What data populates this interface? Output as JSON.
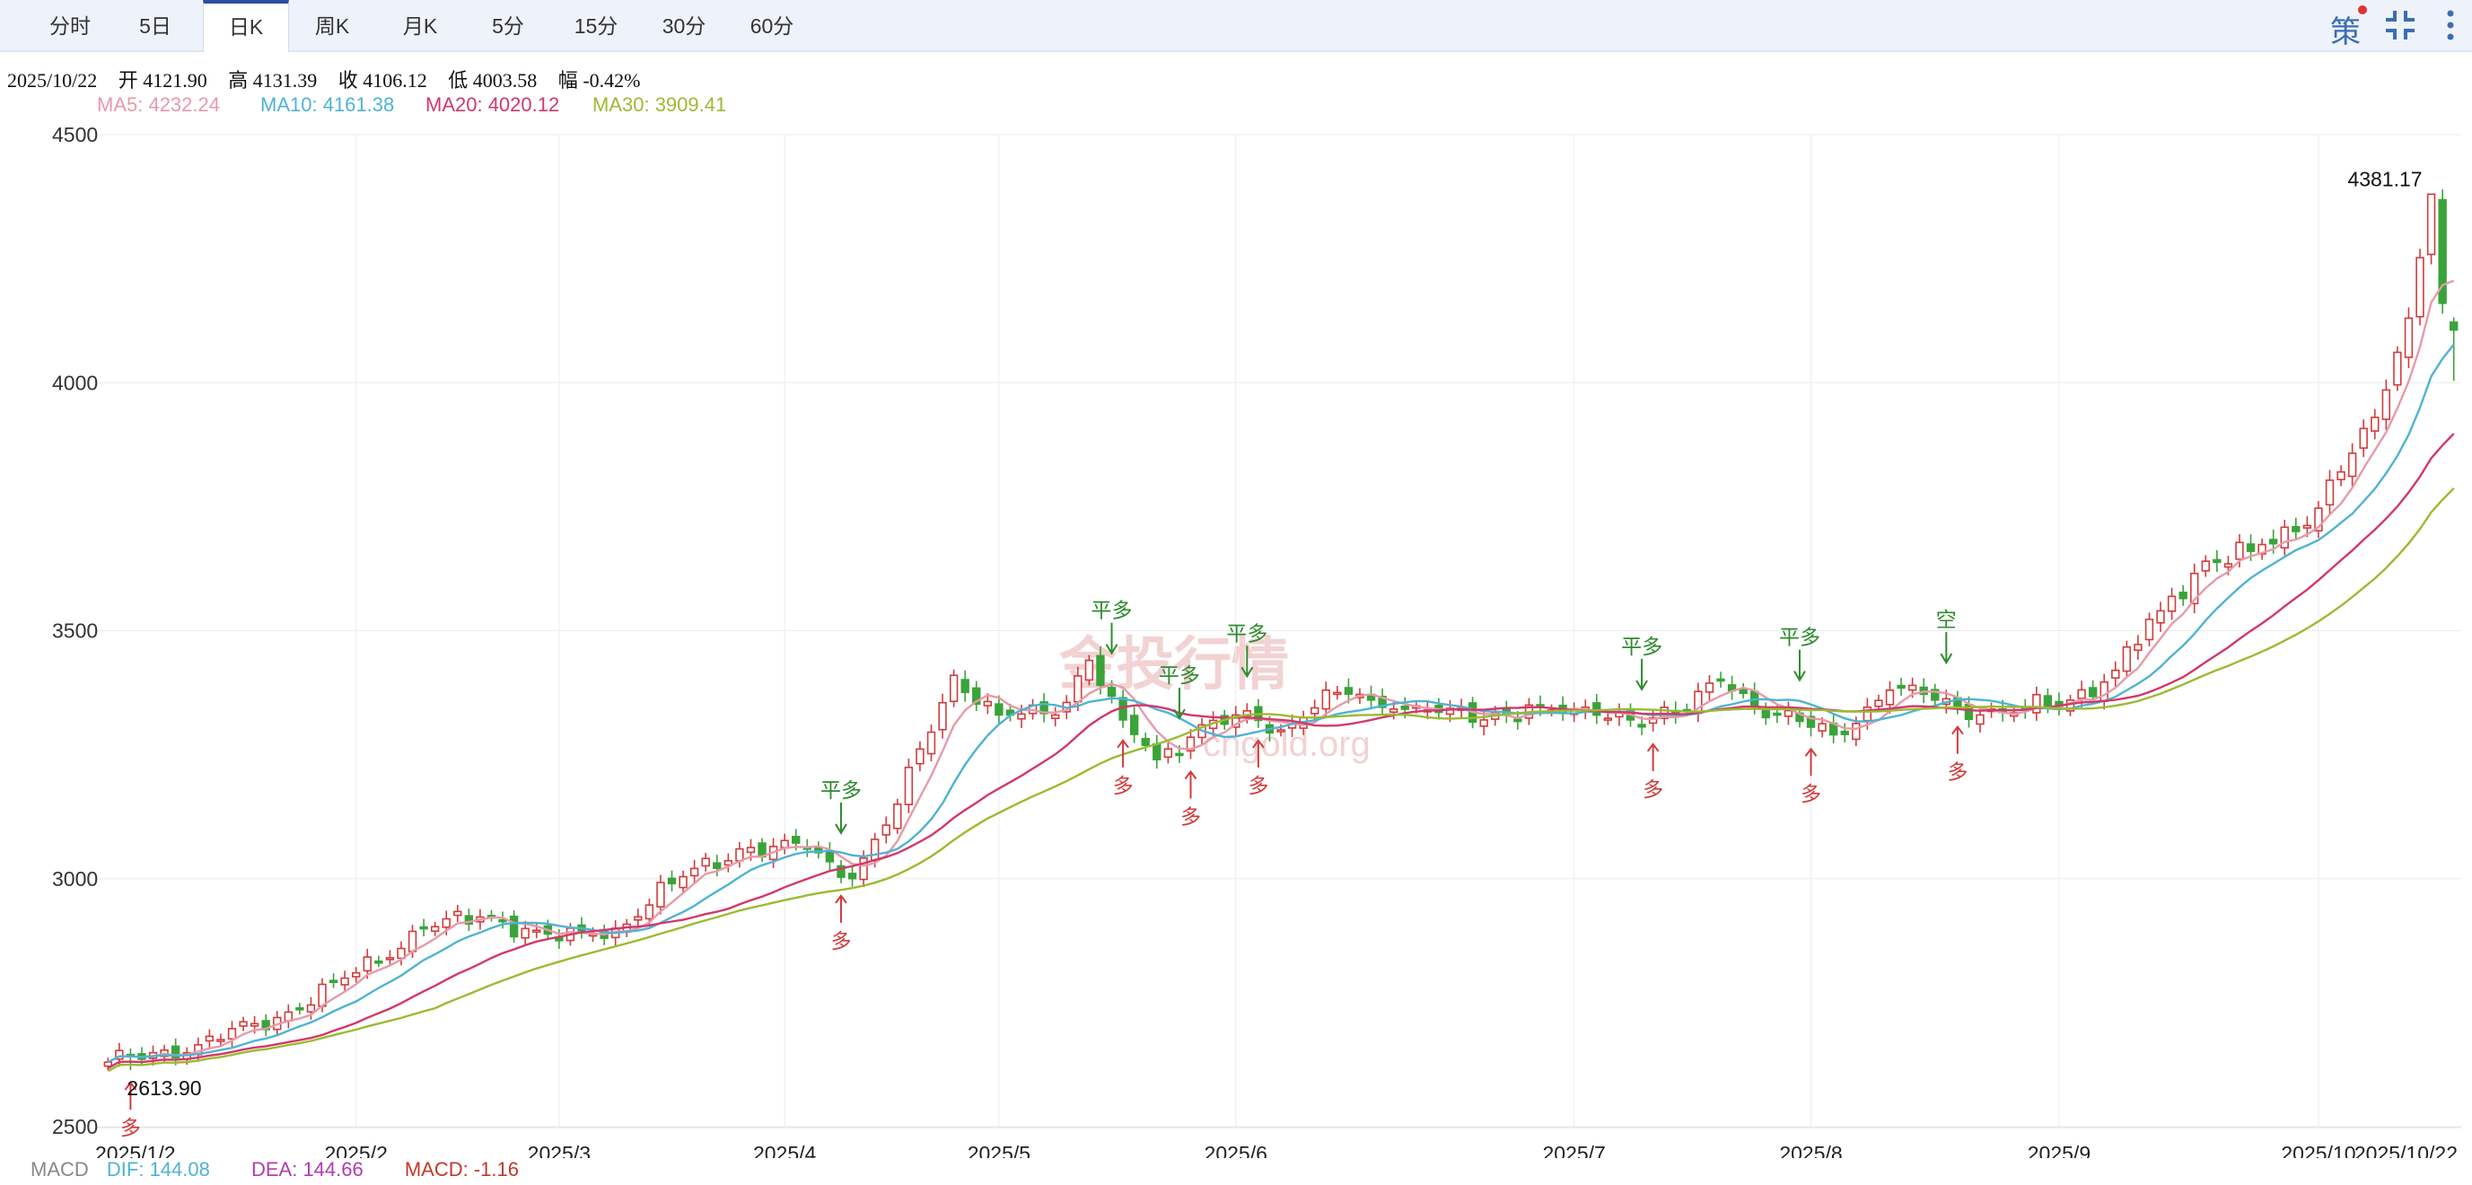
{
  "tabs": [
    "分时",
    "5日",
    "日K",
    "周K",
    "月K",
    "5分",
    "15分",
    "30分",
    "60分"
  ],
  "active_tab": "日K",
  "tools": {
    "strategy": "策",
    "fullscreen_icon": "fullscreen-icon",
    "more_icon": "more-vertical-icon"
  },
  "info": {
    "date": "2025/10/22",
    "open_label": "开",
    "open": "4121.90",
    "high_label": "高",
    "high": "4131.39",
    "close_label": "收",
    "close": "4106.12",
    "low_label": "低",
    "low": "4003.58",
    "amp_label": "幅",
    "amp": "-0.42%"
  },
  "ma": {
    "ma5": "MA5: 4232.24",
    "ma10": "MA10: 4161.38",
    "ma20": "MA20: 4020.12",
    "ma30": "MA30: 3909.41"
  },
  "macd": {
    "label": "MACD",
    "dif": "DIF: 144.08",
    "dea": "DEA: 144.66",
    "macd": "MACD: -1.16"
  },
  "watermark": {
    "cn": "金投行情",
    "en": "cngold.org"
  },
  "colors": {
    "up": "#d23b3b",
    "down": "#3aa33a",
    "ma5": "#e79aa8",
    "ma10": "#4fb3d3",
    "ma20": "#d2386a",
    "ma30": "#9abb32",
    "tab_accent": "#2c4fa3"
  },
  "chart_data": {
    "type": "candlestick",
    "y_ticks": [
      "4500",
      "4000",
      "3500",
      "3000",
      "2500"
    ],
    "ylim": [
      2500,
      4500
    ],
    "x_ticks": [
      "2025/1/2",
      "2025/2",
      "2025/3",
      "2025/4",
      "2025/5",
      "2025/6",
      "2025/7",
      "2025/8",
      "2025/9",
      "2025/10",
      "2025/10/22"
    ],
    "x_tick_day_index": [
      0,
      22,
      40,
      60,
      79,
      100,
      130,
      151,
      173,
      196,
      207
    ],
    "close_anchors": [
      [
        0,
        2630
      ],
      [
        8,
        2665
      ],
      [
        15,
        2720
      ],
      [
        22,
        2810
      ],
      [
        28,
        2900
      ],
      [
        34,
        2925
      ],
      [
        40,
        2875
      ],
      [
        45,
        2900
      ],
      [
        50,
        2990
      ],
      [
        56,
        3060
      ],
      [
        62,
        3060
      ],
      [
        66,
        3000
      ],
      [
        70,
        3150
      ],
      [
        75,
        3410
      ],
      [
        79,
        3330
      ],
      [
        84,
        3330
      ],
      [
        87,
        3440
      ],
      [
        90,
        3320
      ],
      [
        93,
        3240
      ],
      [
        97,
        3310
      ],
      [
        100,
        3330
      ],
      [
        104,
        3300
      ],
      [
        108,
        3380
      ],
      [
        112,
        3360
      ],
      [
        117,
        3340
      ],
      [
        122,
        3320
      ],
      [
        126,
        3350
      ],
      [
        130,
        3340
      ],
      [
        135,
        3320
      ],
      [
        140,
        3340
      ],
      [
        143,
        3400
      ],
      [
        148,
        3330
      ],
      [
        153,
        3290
      ],
      [
        158,
        3380
      ],
      [
        162,
        3360
      ],
      [
        166,
        3330
      ],
      [
        170,
        3340
      ],
      [
        174,
        3360
      ],
      [
        178,
        3420
      ],
      [
        182,
        3540
      ],
      [
        186,
        3640
      ],
      [
        190,
        3660
      ],
      [
        194,
        3700
      ],
      [
        198,
        3820
      ],
      [
        201,
        3930
      ],
      [
        204,
        4130
      ],
      [
        206,
        4380
      ],
      [
        207,
        4160
      ],
      [
        208,
        4106
      ]
    ],
    "annotations": {
      "high_label": "4381.17",
      "low_label": "2613.90",
      "high_day": 206,
      "high_value": 4381.17,
      "low_day": 2,
      "low_value": 2613.9
    },
    "signals": [
      {
        "day": 2,
        "text": "多",
        "type": "up"
      },
      {
        "day": 65,
        "text": "平多",
        "type": "down"
      },
      {
        "day": 65,
        "text": "多",
        "type": "up"
      },
      {
        "day": 89,
        "text": "平多",
        "type": "down"
      },
      {
        "day": 90,
        "text": "多",
        "type": "up"
      },
      {
        "day": 95,
        "text": "平多",
        "type": "down"
      },
      {
        "day": 96,
        "text": "多",
        "type": "up"
      },
      {
        "day": 101,
        "text": "平多",
        "type": "down"
      },
      {
        "day": 102,
        "text": "多",
        "type": "up"
      },
      {
        "day": 136,
        "text": "平多",
        "type": "down"
      },
      {
        "day": 137,
        "text": "多",
        "type": "up"
      },
      {
        "day": 150,
        "text": "平多",
        "type": "down"
      },
      {
        "day": 151,
        "text": "多",
        "type": "up"
      },
      {
        "day": 163,
        "text": "空",
        "type": "down"
      },
      {
        "day": 164,
        "text": "多",
        "type": "up"
      }
    ],
    "series": [
      {
        "name": "MA5"
      },
      {
        "name": "MA10"
      },
      {
        "name": "MA20"
      },
      {
        "name": "MA30"
      }
    ],
    "grid": true
  }
}
